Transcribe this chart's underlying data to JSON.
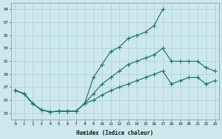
{
  "xlabel": "Humidex (Indice chaleur)",
  "xlim": [
    -0.5,
    23.5
  ],
  "ylim": [
    22.0,
    40.0
  ],
  "yticks": [
    23,
    25,
    27,
    29,
    31,
    33,
    35,
    37,
    39
  ],
  "xticks": [
    0,
    1,
    2,
    3,
    4,
    5,
    6,
    7,
    8,
    9,
    10,
    11,
    12,
    13,
    14,
    15,
    16,
    17,
    18,
    19,
    20,
    21,
    22,
    23
  ],
  "bg_color": "#cce8ed",
  "grid_color": "#aacdd4",
  "line_color": "#1a7070",
  "line1_x": [
    0,
    1,
    2,
    3,
    4,
    5,
    6,
    7,
    8,
    9,
    10,
    11,
    12,
    13,
    14,
    15,
    16,
    17
  ],
  "line1_y": [
    26.5,
    26.0,
    24.5,
    23.5,
    23.2,
    23.3,
    23.3,
    23.3,
    24.5,
    28.5,
    30.5,
    32.5,
    33.2,
    34.5,
    35.0,
    35.5,
    36.5,
    39.0
  ],
  "line2_x": [
    0,
    1,
    2,
    3,
    4,
    5,
    6,
    7,
    8,
    9,
    10,
    11,
    12,
    13,
    14,
    15,
    16,
    17,
    18,
    19,
    20,
    21,
    22,
    23
  ],
  "line2_y": [
    26.5,
    26.0,
    24.5,
    23.5,
    23.2,
    23.3,
    23.3,
    23.3,
    24.5,
    26.0,
    27.5,
    28.5,
    29.5,
    30.5,
    31.0,
    31.5,
    32.0,
    33.0,
    31.0,
    31.0,
    31.0,
    31.0,
    30.0,
    29.5
  ],
  "line3_x": [
    0,
    1,
    2,
    3,
    4,
    5,
    6,
    7,
    8,
    9,
    10,
    11,
    12,
    13,
    14,
    15,
    16,
    17,
    18,
    19,
    20,
    21,
    22,
    23
  ],
  "line3_y": [
    26.5,
    26.0,
    24.5,
    23.5,
    23.2,
    23.3,
    23.3,
    23.3,
    24.5,
    25.0,
    25.8,
    26.5,
    27.0,
    27.5,
    28.0,
    28.5,
    29.0,
    29.5,
    27.5,
    28.0,
    28.5,
    28.5,
    27.5,
    28.0
  ]
}
